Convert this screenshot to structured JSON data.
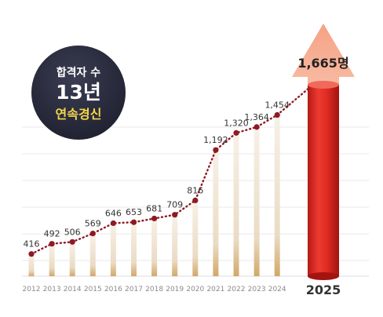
{
  "badge": {
    "line1": "합격자 수",
    "line2": "13년",
    "line3": "연속경신"
  },
  "highlight_label": "1,665명",
  "chart_data": {
    "type": "bar",
    "title": "",
    "xlabel": "",
    "ylabel": "",
    "categories": [
      "2012",
      "2013",
      "2014",
      "2015",
      "2016",
      "2017",
      "2018",
      "2019",
      "2020",
      "2021",
      "2022",
      "2023",
      "2024",
      "2025"
    ],
    "values": [
      416,
      492,
      506,
      569,
      646,
      653,
      681,
      709,
      816,
      1192,
      1320,
      1364,
      1454,
      1665
    ],
    "labels": [
      "416",
      "492",
      "506",
      "569",
      "646",
      "653",
      "681",
      "709",
      "816",
      "1,192",
      "1,320",
      "1,364",
      "1,454",
      "1,665명"
    ],
    "highlight_category": "2025",
    "ylim": [
      250,
      1750
    ],
    "grid": true,
    "trend_line": true,
    "colors": {
      "bar_gold": "#d8b37a",
      "bar_light": "#f4ece0",
      "highlight_red": "#d92a22",
      "arrow_peach": "#f6a98a",
      "dot": "#8e1a24",
      "trend": "#8e1a24",
      "badge_dark": "#27293a",
      "badge_text_yellow": "#f5d64a"
    }
  }
}
